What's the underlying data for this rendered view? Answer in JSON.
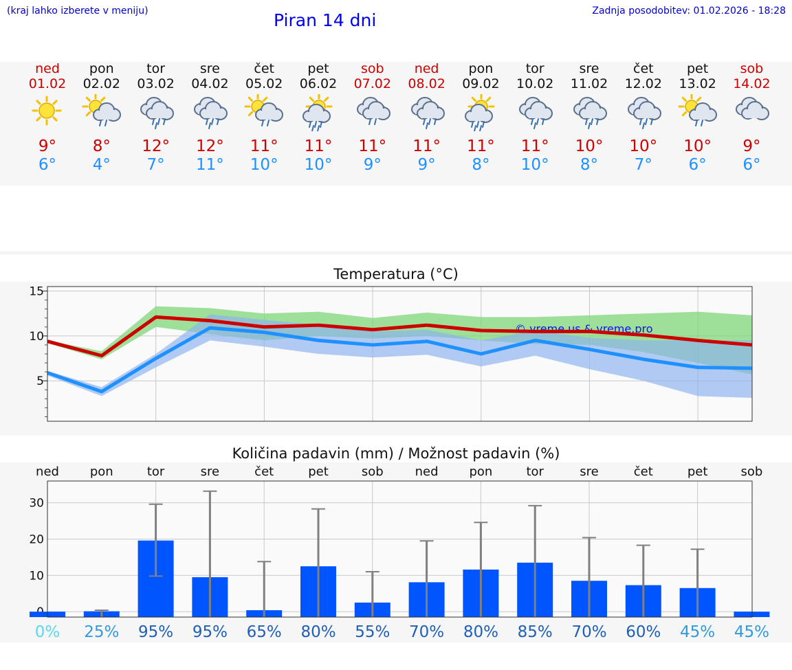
{
  "header": {
    "hint": "(kraj lahko izberete v meniju)",
    "title": "Piran 14 dni",
    "updated": "Zadnja posodobitev: 01.02.2026 - 18:28"
  },
  "colors": {
    "max_temp": "#cc0000",
    "min_temp": "#1e90ff",
    "bar": "#0055ff",
    "green_band": "#7fd77a",
    "blue_band": "#8ab0f0"
  },
  "days": [
    {
      "name": "ned",
      "date": "01.02",
      "max": "9°",
      "min": "6°",
      "weekend": true,
      "icon": "sun-icon"
    },
    {
      "name": "pon",
      "date": "02.02",
      "max": "8°",
      "min": "4°",
      "weekend": false,
      "icon": "sun-cloud-rain-icon"
    },
    {
      "name": "tor",
      "date": "03.02",
      "max": "12°",
      "min": "7°",
      "weekend": false,
      "icon": "cloud-rain-icon"
    },
    {
      "name": "sre",
      "date": "04.02",
      "max": "12°",
      "min": "11°",
      "weekend": false,
      "icon": "cloud-rain-icon"
    },
    {
      "name": "čet",
      "date": "05.02",
      "max": "11°",
      "min": "10°",
      "weekend": false,
      "icon": "sun-cloud-rain-icon"
    },
    {
      "name": "pet",
      "date": "06.02",
      "max": "11°",
      "min": "10°",
      "weekend": false,
      "icon": "sun-heavy-rain-icon"
    },
    {
      "name": "sob",
      "date": "07.02",
      "max": "11°",
      "min": "9°",
      "weekend": true,
      "icon": "cloud-light-rain-icon"
    },
    {
      "name": "ned",
      "date": "08.02",
      "max": "11°",
      "min": "9°",
      "weekend": true,
      "icon": "cloud-rain-icon"
    },
    {
      "name": "pon",
      "date": "09.02",
      "max": "11°",
      "min": "8°",
      "weekend": false,
      "icon": "sun-heavy-rain-icon"
    },
    {
      "name": "tor",
      "date": "10.02",
      "max": "11°",
      "min": "10°",
      "weekend": false,
      "icon": "cloud-rain-icon"
    },
    {
      "name": "sre",
      "date": "11.02",
      "max": "10°",
      "min": "8°",
      "weekend": false,
      "icon": "cloud-rain-icon"
    },
    {
      "name": "čet",
      "date": "12.02",
      "max": "10°",
      "min": "7°",
      "weekend": false,
      "icon": "cloud-rain-icon"
    },
    {
      "name": "pet",
      "date": "13.02",
      "max": "10°",
      "min": "6°",
      "weekend": false,
      "icon": "sun-cloud-rain-icon"
    },
    {
      "name": "sob",
      "date": "14.02",
      "max": "9°",
      "min": "6°",
      "weekend": true,
      "icon": "cloud-icon"
    }
  ],
  "chart_data": [
    {
      "type": "line",
      "title": "Temperatura (°C)",
      "ylim": [
        0.5,
        15.5
      ],
      "yticks": [
        5,
        10,
        15
      ],
      "x": [
        "01.02",
        "02.02",
        "03.02",
        "04.02",
        "05.02",
        "06.02",
        "07.02",
        "08.02",
        "09.02",
        "10.02",
        "11.02",
        "12.02",
        "13.02",
        "14.02"
      ],
      "watermark": "© vreme.us & vreme.pro",
      "grid": true,
      "series": [
        {
          "name": "max",
          "values": [
            9.4,
            7.8,
            12.1,
            11.7,
            11.0,
            11.2,
            10.7,
            11.2,
            10.6,
            10.5,
            10.5,
            10.1,
            9.5,
            9.0
          ]
        },
        {
          "name": "min",
          "values": [
            5.9,
            3.8,
            7.5,
            10.9,
            10.4,
            9.5,
            9.0,
            9.4,
            8.0,
            9.5,
            8.5,
            7.4,
            6.5,
            6.4
          ]
        }
      ],
      "bands": [
        {
          "name": "max range",
          "low": [
            9.2,
            7.4,
            11.0,
            10.2,
            9.5,
            10.0,
            9.7,
            10.0,
            9.5,
            9.1,
            9.0,
            8.2,
            7.0,
            5.7
          ],
          "high": [
            9.5,
            8.3,
            13.3,
            13.1,
            12.5,
            12.7,
            12.0,
            12.6,
            12.1,
            12.1,
            12.3,
            12.5,
            12.7,
            12.3
          ]
        },
        {
          "name": "min range",
          "low": [
            5.6,
            3.3,
            6.5,
            9.5,
            8.8,
            8.0,
            7.6,
            7.9,
            6.6,
            7.8,
            6.3,
            5.0,
            3.3,
            3.1
          ],
          "high": [
            6.1,
            4.3,
            8.0,
            12.4,
            11.8,
            11.2,
            10.5,
            10.7,
            9.5,
            10.6,
            9.8,
            9.5,
            9.5,
            9.5
          ]
        }
      ]
    },
    {
      "type": "bar",
      "title": "Količina padavin (mm) / Možnost padavin (%)",
      "ylim": [
        -1.5,
        36
      ],
      "yticks": [
        0,
        10,
        20,
        30
      ],
      "categories": [
        "ned",
        "pon",
        "tor",
        "sre",
        "čet",
        "pet",
        "sob",
        "ned",
        "pon",
        "tor",
        "sre",
        "čet",
        "pet",
        "sob"
      ],
      "values": [
        0.0,
        0.1,
        19.6,
        9.5,
        0.4,
        12.5,
        2.5,
        8.1,
        11.6,
        13.5,
        8.5,
        7.3,
        6.5,
        0.0
      ],
      "error_low": [
        0.0,
        0.0,
        9.8,
        0.0,
        0.0,
        0.0,
        0.0,
        0.0,
        0.0,
        0.0,
        0.0,
        0.0,
        0.0,
        0.0
      ],
      "error_high": [
        0.0,
        0.4,
        29.6,
        33.2,
        13.8,
        28.3,
        11.0,
        19.5,
        24.6,
        29.2,
        20.4,
        18.3,
        17.2,
        0.0
      ],
      "probability": [
        "0%",
        "25%",
        "95%",
        "95%",
        "65%",
        "80%",
        "55%",
        "70%",
        "80%",
        "85%",
        "70%",
        "60%",
        "45%",
        "45%"
      ]
    }
  ]
}
